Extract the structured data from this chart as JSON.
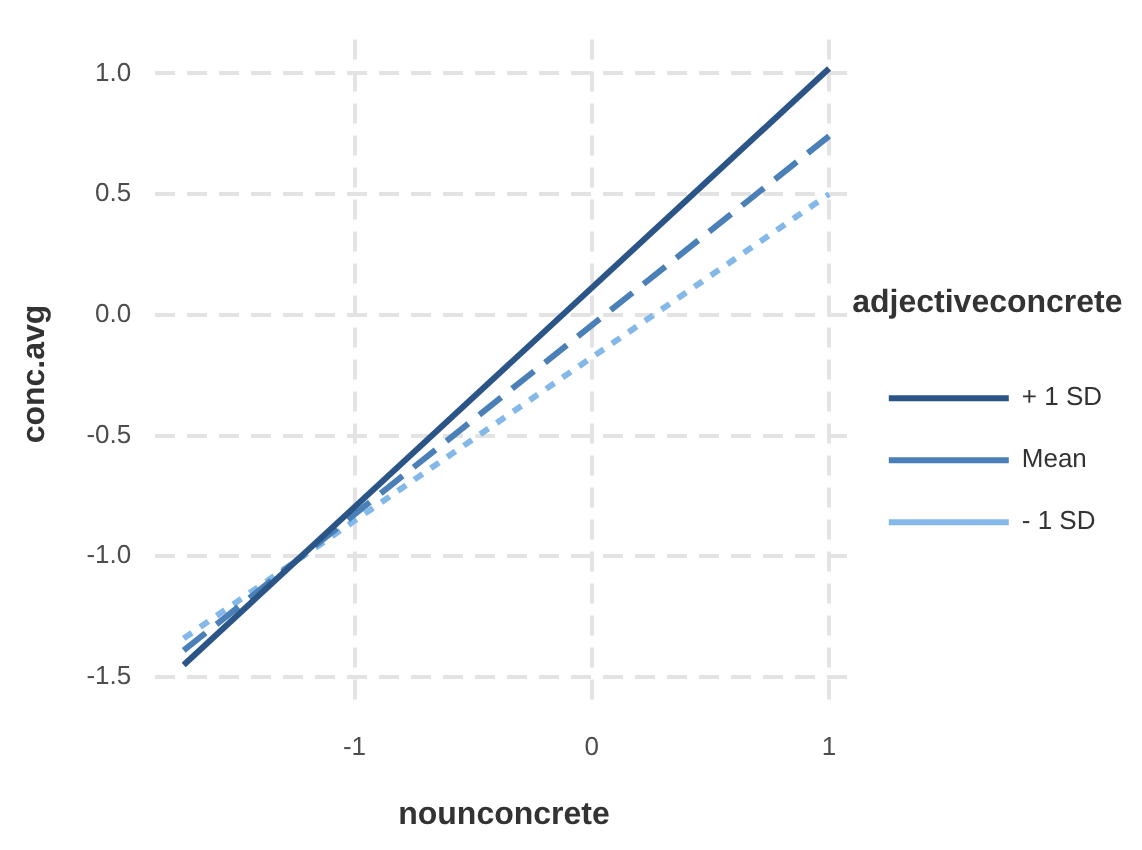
{
  "chart_data": {
    "type": "line",
    "xlabel": "nounconcrete",
    "ylabel": "conc.avg",
    "legend_title": "adjectiveconcrete",
    "legend": "right",
    "grid": true,
    "marker": "none",
    "x": [
      -1.72,
      1
    ],
    "xlim": [
      -1.84,
      1.1
    ],
    "xticks": [
      -1,
      0,
      1
    ],
    "ylim": [
      -1.63,
      1.14
    ],
    "yticks": [
      -1.5,
      {
        "value": -1,
        "label": "-1.0"
      },
      -0.5,
      {
        "value": 0,
        "label": "0.0"
      },
      0.5,
      {
        "value": 1,
        "label": "1.0"
      }
    ],
    "series": [
      {
        "name": "+ 1 SD",
        "color": "#2b5586",
        "line_style": "solid",
        "values": [
          -1.45,
          1.02
        ]
      },
      {
        "name": "Mean",
        "color": "#4a7fb8",
        "line_style": "dashed",
        "values": [
          -1.39,
          0.74
        ]
      },
      {
        "name": "- 1 SD",
        "color": "#84b8e8",
        "line_style": "dotted",
        "values": [
          -1.34,
          0.5
        ]
      }
    ]
  }
}
